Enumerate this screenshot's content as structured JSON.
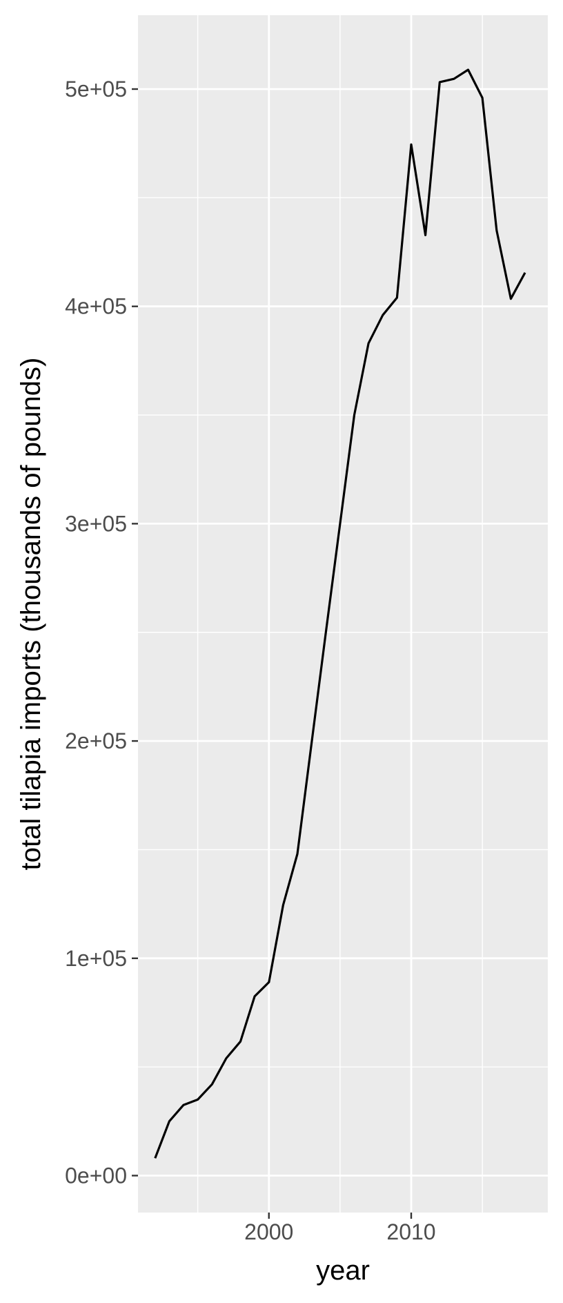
{
  "chart_data": {
    "type": "line",
    "title": "",
    "xlabel": "year",
    "ylabel": "total tilapia imports (thousands of pounds)",
    "xlim": [
      1990.8,
      2019.6
    ],
    "ylim": [
      -17000,
      534000
    ],
    "x_major_ticks": [
      2000,
      2010
    ],
    "x_tick_labels": [
      "2000",
      "2010"
    ],
    "x_minor_ticks": [
      1995,
      2005,
      2015
    ],
    "y_major_ticks": [
      0,
      100000,
      200000,
      300000,
      400000,
      500000
    ],
    "y_tick_labels": [
      "0e+00",
      "1e+05",
      "2e+05",
      "3e+05",
      "4e+05",
      "5e+05"
    ],
    "y_minor_ticks": [
      50000,
      150000,
      250000,
      350000,
      450000
    ],
    "grid": true,
    "legend": "none",
    "series": [
      {
        "color": "#000000",
        "x": [
          1992,
          1993,
          1994,
          1995,
          1996,
          1997,
          1998,
          1999,
          2000,
          2001,
          2002,
          2003,
          2004,
          2005,
          2006,
          2007,
          2008,
          2009,
          2010,
          2011,
          2012,
          2013,
          2014,
          2015,
          2016,
          2017,
          2018
        ],
        "values": [
          8000,
          25000,
          32500,
          35000,
          42000,
          54000,
          61700,
          82500,
          89000,
          124500,
          148000,
          199000,
          250000,
          300000,
          350000,
          383000,
          396000,
          404000,
          474500,
          432800,
          503200,
          504700,
          508900,
          496000,
          435000,
          403500,
          415500
        ]
      }
    ],
    "colors": {
      "panel_background": "#ebebeb",
      "grid_line": "#ffffff",
      "tick_mark": "#333333",
      "tick_label": "#4d4d4d",
      "line": "#000000"
    }
  }
}
